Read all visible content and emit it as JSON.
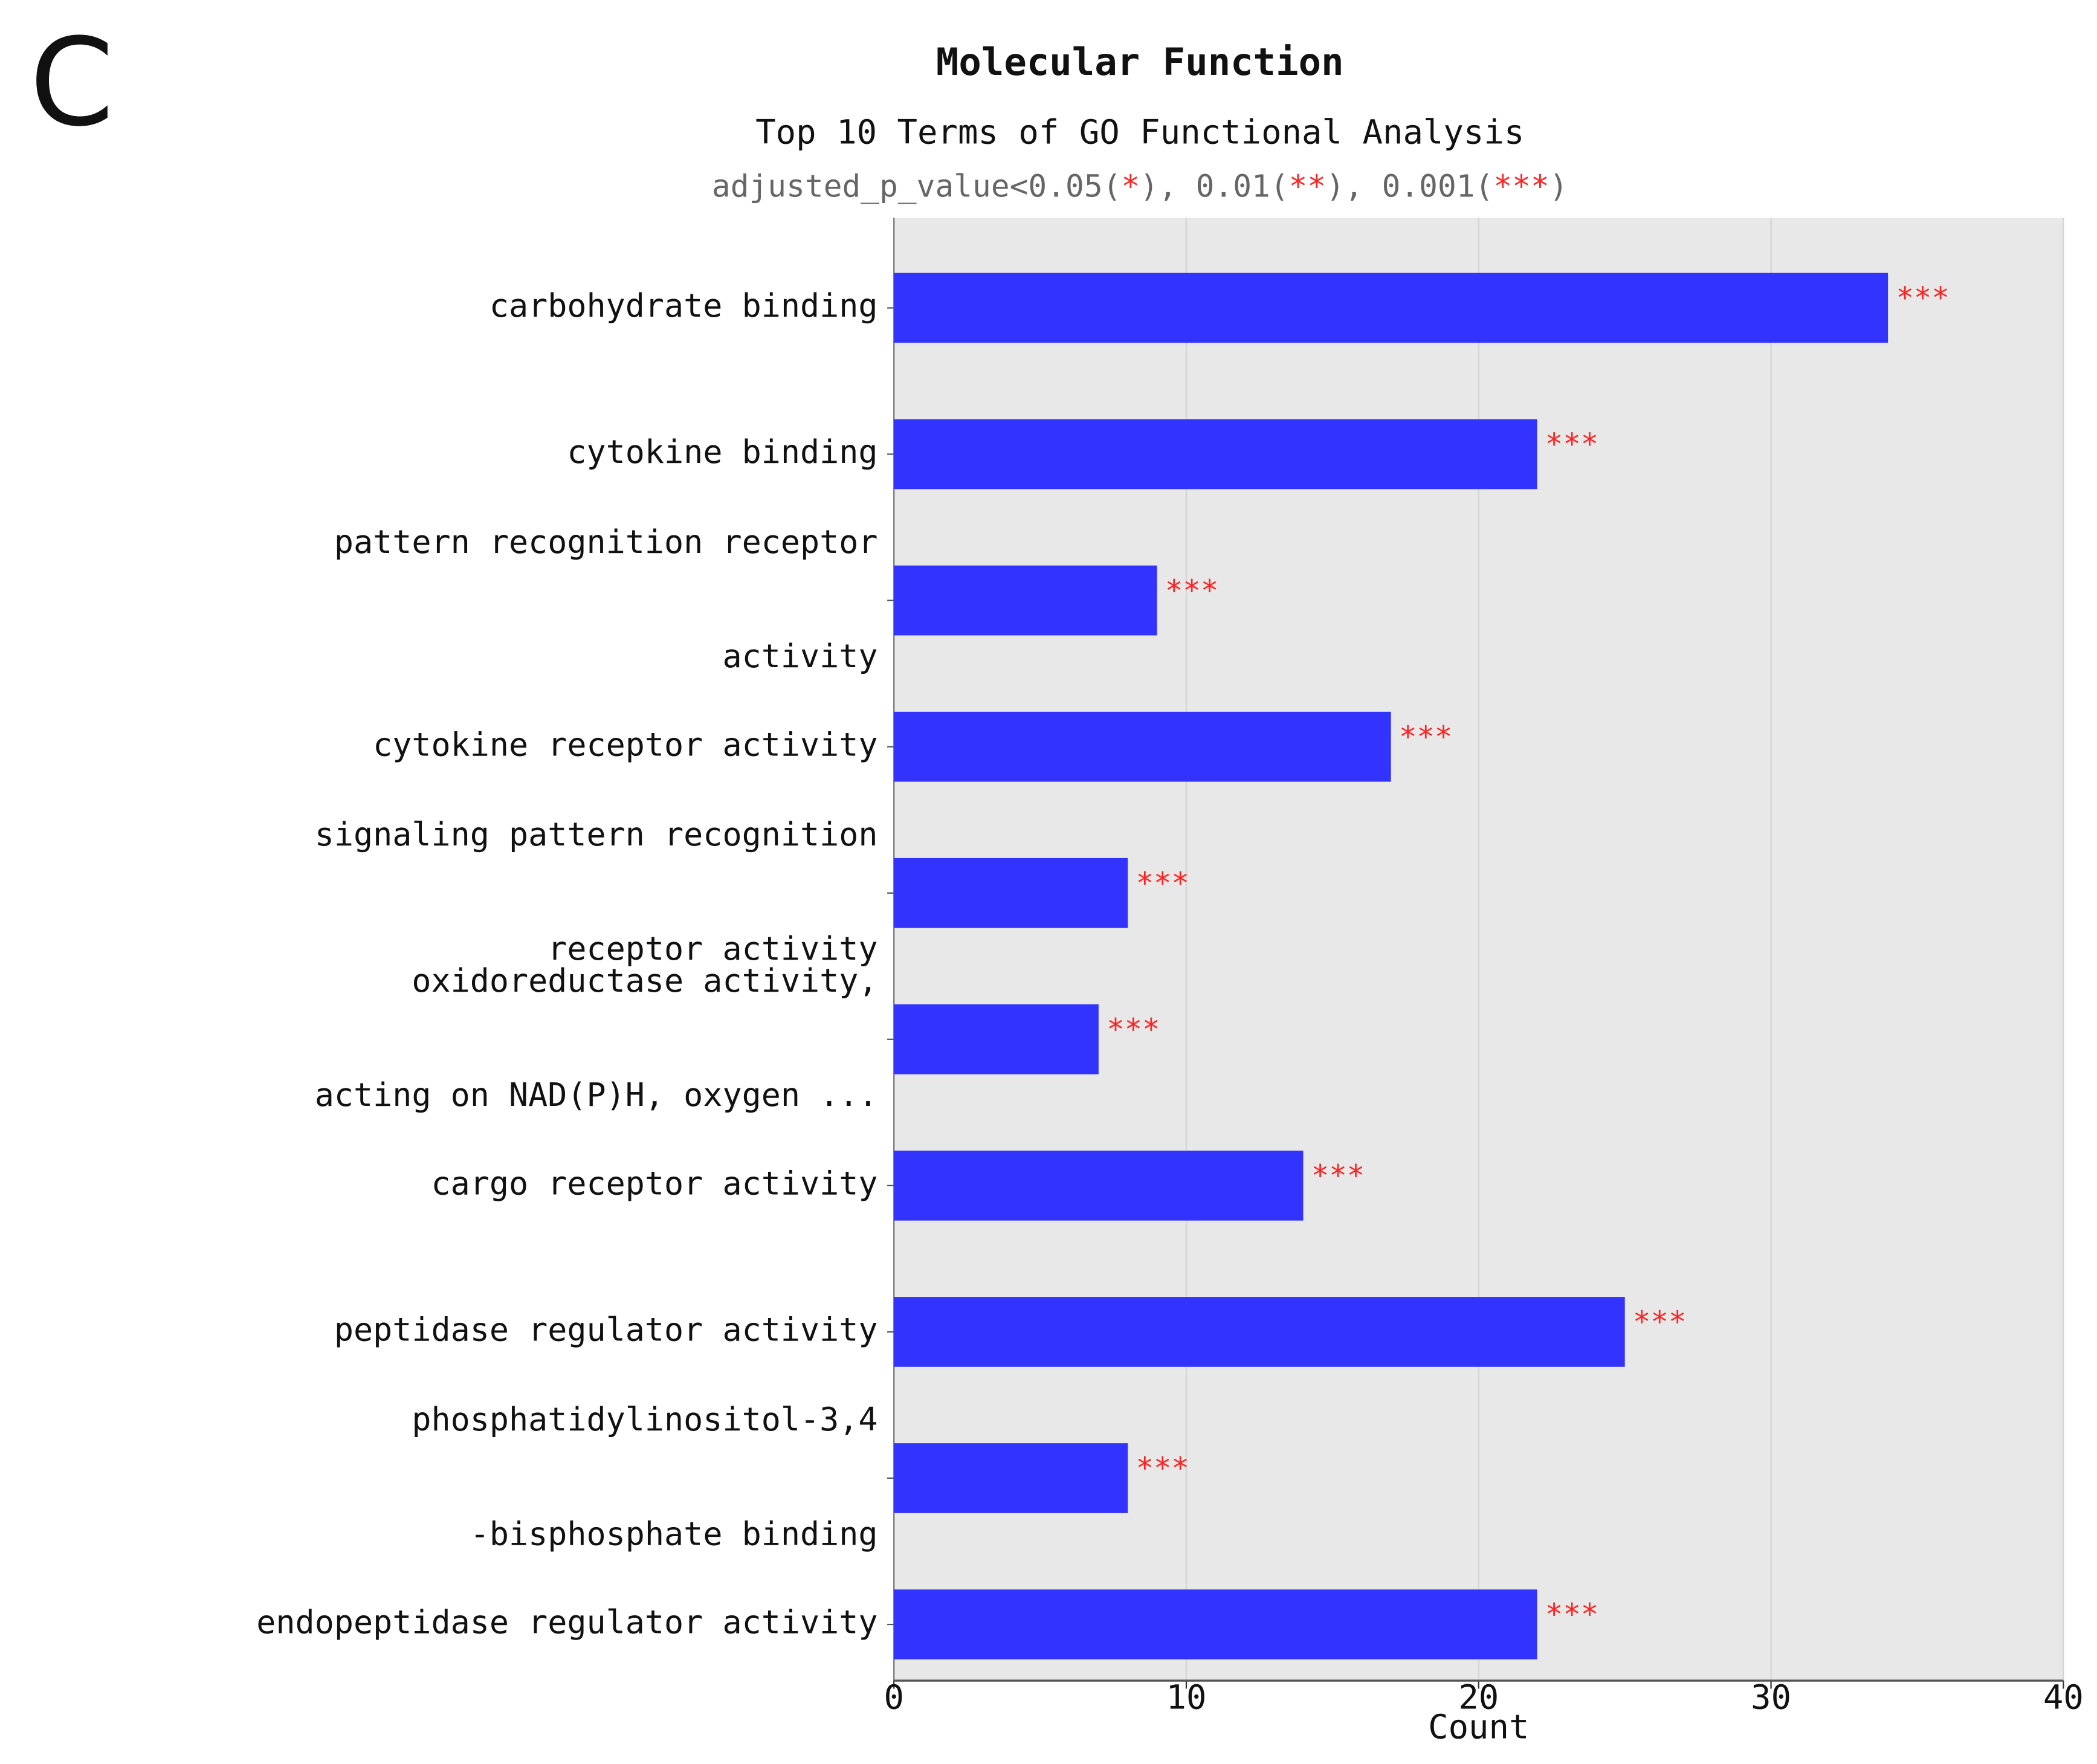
{
  "panel_label": "C",
  "chart_data": {
    "type": "barh",
    "title": "Molecular Function",
    "subtitle": "Top 10 Terms of GO Functional Analysis",
    "note_parts": [
      "adjusted_p_value<0.05(",
      "*",
      "), 0.01(",
      "**",
      "), 0.001(",
      "***",
      ")"
    ],
    "xlabel": "Count",
    "categories": [
      [
        "carbohydrate binding"
      ],
      [
        "cytokine binding"
      ],
      [
        "pattern recognition receptor",
        "activity"
      ],
      [
        "cytokine receptor activity"
      ],
      [
        "signaling pattern recognition",
        "receptor activity"
      ],
      [
        "oxidoreductase activity,",
        "acting on NAD(P)H, oxygen ..."
      ],
      [
        "cargo receptor activity"
      ],
      [
        "peptidase regulator activity"
      ],
      [
        "phosphatidylinositol-3,4",
        "-bisphosphate binding"
      ],
      [
        "endopeptidase regulator activity"
      ]
    ],
    "values": [
      34,
      22,
      9,
      17,
      8,
      7,
      14,
      25,
      8,
      22
    ],
    "significance": [
      "***",
      "***",
      "***",
      "***",
      "***",
      "***",
      "***",
      "***",
      "***",
      "***"
    ],
    "color": "#3333ff",
    "significance_color": "#ff2222",
    "background": "#e8e8e8",
    "xlim": [
      0,
      40
    ],
    "xticks": [
      0,
      10,
      20,
      30,
      40
    ],
    "grid": true
  }
}
